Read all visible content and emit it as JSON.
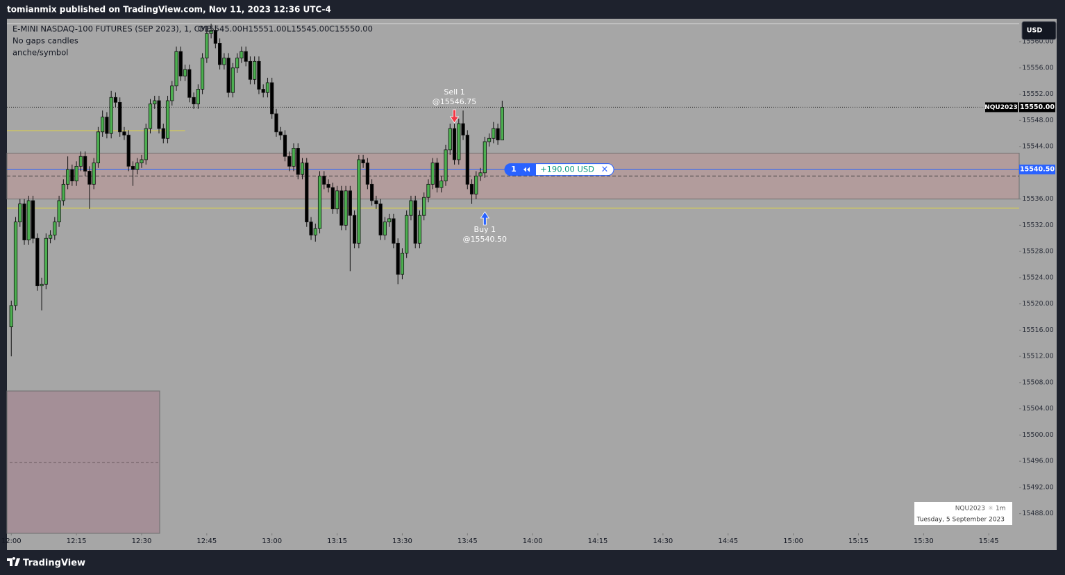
{
  "header": {
    "publisher": "tomianmix published on TradingView.com, Nov 11, 2023 12:36 UTC-4"
  },
  "chart_data": {
    "type": "candlestick",
    "title": "E-MINI NASDAQ-100 FUTURES (SEP 2023), 1, CME",
    "ohlc_legend": [
      "O15545.00",
      "H15551.00",
      "L15545.00",
      "C15550.00"
    ],
    "subtitle_lines": [
      "No gaps candles",
      "anche/symbol"
    ],
    "x": [
      "12:00",
      "12:01",
      "12:02",
      "12:03",
      "12:04",
      "12:05",
      "12:06",
      "12:07",
      "12:08",
      "12:09",
      "12:10",
      "12:11",
      "12:12",
      "12:13",
      "12:14",
      "12:15",
      "12:16",
      "12:17",
      "12:18",
      "12:19",
      "12:20",
      "12:21",
      "12:22",
      "12:23",
      "12:24",
      "12:25",
      "12:26",
      "12:27",
      "12:28",
      "12:29",
      "12:30",
      "12:31",
      "12:32",
      "12:33",
      "12:34",
      "12:35",
      "12:36",
      "12:37",
      "12:38",
      "12:39",
      "12:40",
      "12:41",
      "12:42",
      "12:43",
      "12:44",
      "12:45",
      "12:46",
      "12:47",
      "12:48",
      "12:49",
      "12:50",
      "12:51",
      "12:52",
      "12:53",
      "12:54",
      "12:55",
      "12:56",
      "12:57",
      "12:58",
      "12:59",
      "13:00",
      "13:01",
      "13:02",
      "13:03",
      "13:04",
      "13:05",
      "13:06",
      "13:07",
      "13:08",
      "13:09",
      "13:10",
      "13:11",
      "13:12",
      "13:13",
      "13:14",
      "13:15",
      "13:16",
      "13:17",
      "13:18",
      "13:19",
      "13:20",
      "13:21",
      "13:22",
      "13:23",
      "13:24",
      "13:25",
      "13:26",
      "13:27",
      "13:28",
      "13:29",
      "13:30",
      "13:31",
      "13:32",
      "13:33",
      "13:34",
      "13:35",
      "13:36",
      "13:37",
      "13:38",
      "13:39",
      "13:40",
      "13:41",
      "13:42",
      "13:43",
      "13:44",
      "13:45",
      "13:46",
      "13:47",
      "13:48",
      "13:49",
      "13:50",
      "13:51",
      "13:52",
      "13:53"
    ],
    "open": [
      15516.5,
      15519.75,
      15532.5,
      15535.25,
      15529.75,
      15535.75,
      15530,
      15522.75,
      15523,
      15530,
      15530.5,
      15532.5,
      15535.75,
      15538.25,
      15540.5,
      15538.75,
      15541,
      15542.5,
      15540.25,
      15538.25,
      15541.5,
      15546.25,
      15548.5,
      15546,
      15551.5,
      15550.75,
      15546.25,
      15545.75,
      15541,
      15540.5,
      15541.5,
      15542,
      15546.75,
      15550.5,
      15551,
      15546.75,
      15545.25,
      15551,
      15553.25,
      15558.5,
      15554.75,
      15555.75,
      15551.5,
      15550.5,
      15552.75,
      15557.5,
      15561.25,
      15561.75,
      15559.75,
      15556.5,
      15557.5,
      15552.25,
      15556,
      15557.5,
      15558.5,
      15557,
      15554.25,
      15557,
      15552.75,
      15552.25,
      15553.75,
      15549,
      15546.25,
      15545.75,
      15542.5,
      15541,
      15543.75,
      15539.75,
      15541.5,
      15532.5,
      15530.5,
      15531.5,
      15539.5,
      15538.25,
      15537.75,
      15534.5,
      15537.25,
      15532,
      15537.25,
      15533.5,
      15529.25,
      15542,
      15541.5,
      15538.25,
      15535.75,
      15535.25,
      15530.5,
      15532.5,
      15533,
      15529.25,
      15524.5,
      15527.75,
      15533.5,
      15535.75,
      15529.25,
      15533.5,
      15536.25,
      15538.25,
      15541.5,
      15537.75,
      15538.75,
      15543.5,
      15546.75,
      15542,
      15547.5,
      15545.75,
      15538.25,
      15536.75,
      15539.5,
      15540,
      15544.75,
      15545.25,
      15546.75,
      15545
    ],
    "high": [
      15520.5,
      15533.25,
      15536,
      15536,
      15536.5,
      15536.5,
      15530.75,
      15524,
      15530.75,
      15531.25,
      15533.25,
      15536.5,
      15539,
      15542.5,
      15541.25,
      15541.75,
      15543.25,
      15543.25,
      15541,
      15542.25,
      15547,
      15549.5,
      15549.25,
      15552.5,
      15552.25,
      15551.5,
      15547,
      15546.5,
      15541.75,
      15542.25,
      15542.75,
      15547.5,
      15551.25,
      15551.75,
      15551.75,
      15547.5,
      15551.75,
      15554,
      15559.25,
      15559.25,
      15556.5,
      15556.5,
      15552.25,
      15553.5,
      15558.25,
      15562,
      15562.75,
      15562.5,
      15560.5,
      15558.25,
      15558.25,
      15556.75,
      15558.25,
      15559.25,
      15559.25,
      15557.75,
      15557.75,
      15557.75,
      15553.5,
      15554.5,
      15554.5,
      15549.75,
      15547,
      15546.5,
      15543.25,
      15544.5,
      15544.5,
      15542.25,
      15542.25,
      15533.25,
      15532.25,
      15540.25,
      15540.25,
      15539,
      15538.5,
      15538,
      15538,
      15538,
      15538,
      15534.25,
      15542.75,
      15542.75,
      15542.25,
      15539,
      15536.5,
      15536,
      15533.25,
      15533.75,
      15533.75,
      15530,
      15528.5,
      15534.25,
      15536.5,
      15536.5,
      15534.25,
      15537,
      15539,
      15542.25,
      15542.25,
      15539.5,
      15544.25,
      15547.5,
      15547.5,
      15548.25,
      15549.5,
      15546.5,
      15539,
      15540.25,
      15540.75,
      15545.5,
      15546,
      15547.75,
      15547.5,
      15551
    ],
    "low": [
      15512,
      15519,
      15531.75,
      15529,
      15529,
      15529.25,
      15522,
      15519,
      15522.25,
      15529.25,
      15529.75,
      15531.75,
      15535,
      15537.5,
      15538,
      15538,
      15540.25,
      15539.5,
      15534.5,
      15537.5,
      15540.75,
      15545.5,
      15545.25,
      15545.25,
      15550,
      15545.5,
      15545,
      15540.25,
      15538,
      15539.75,
      15540.75,
      15541.25,
      15546,
      15549.75,
      15546,
      15544.5,
      15544.5,
      15550.25,
      15552.5,
      15554,
      15554,
      15550.75,
      15549.75,
      15549.75,
      15552,
      15556.75,
      15560.5,
      15559,
      15555.75,
      15555.75,
      15551.5,
      15551.5,
      15555.25,
      15556.75,
      15556.25,
      15553.5,
      15553.5,
      15552,
      15551.5,
      15551.5,
      15548.25,
      15545.5,
      15545,
      15541.75,
      15540.25,
      15540.25,
      15539,
      15539,
      15531.75,
      15529.75,
      15529.5,
      15530.75,
      15537.5,
      15537,
      15533.75,
      15533.75,
      15531.25,
      15531.25,
      15525,
      15528.5,
      15528.5,
      15540.75,
      15537.5,
      15535,
      15534.5,
      15529.75,
      15529.75,
      15531.75,
      15528.5,
      15523,
      15523.75,
      15527,
      15532.75,
      15528.5,
      15528.5,
      15532.75,
      15535.5,
      15537.5,
      15537,
      15537,
      15538,
      15542.75,
      15541.25,
      15541.25,
      15545,
      15537.5,
      15535.25,
      15536,
      15538.75,
      15539.25,
      15544,
      15544.5,
      15544.25,
      15545
    ],
    "close": [
      15519.75,
      15532.5,
      15535.25,
      15529.75,
      15535.75,
      15530,
      15522.75,
      15523,
      15530,
      15530.5,
      15532.5,
      15535.75,
      15538.25,
      15540.5,
      15538.75,
      15541,
      15542.5,
      15540.25,
      15538.25,
      15541.5,
      15546.25,
      15548.5,
      15546,
      15551.5,
      15550.75,
      15546.25,
      15545.75,
      15541,
      15540.5,
      15541.5,
      15542,
      15546.75,
      15550.5,
      15551,
      15546.75,
      15545.25,
      15551,
      15553.25,
      15558.5,
      15554.75,
      15555.75,
      15551.5,
      15550.5,
      15552.75,
      15557.5,
      15561.25,
      15561.75,
      15559.75,
      15556.5,
      15557.5,
      15552.25,
      15556,
      15557.5,
      15558.5,
      15557,
      15554.25,
      15557,
      15552.75,
      15552.25,
      15553.75,
      15549,
      15546.25,
      15545.75,
      15542.5,
      15541,
      15543.75,
      15539.75,
      15541.5,
      15532.5,
      15530.5,
      15531.5,
      15539.5,
      15538.25,
      15537.75,
      15534.5,
      15537.25,
      15532,
      15537.25,
      15533.5,
      15529.25,
      15542,
      15541.5,
      15538.25,
      15535.75,
      15535.25,
      15530.5,
      15532.5,
      15533,
      15529.25,
      15524.5,
      15527.75,
      15533.5,
      15535.75,
      15529.25,
      15533.5,
      15536.25,
      15538.25,
      15541.5,
      15537.75,
      15538.75,
      15543.5,
      15546.75,
      15542,
      15547.5,
      15545.75,
      15538.25,
      15536.75,
      15539.5,
      15540,
      15544.75,
      15545.25,
      15546.75,
      15545,
      15550
    ],
    "up_color": "#4caf50",
    "down_color": "#000000",
    "xlim": [
      "11:59",
      "15:52"
    ],
    "xticks": [
      "12:00",
      "12:15",
      "12:30",
      "12:45",
      "13:00",
      "13:15",
      "13:30",
      "13:45",
      "14:00",
      "14:15",
      "14:30",
      "14:45",
      "15:00",
      "15:15",
      "15:30",
      "15:45"
    ],
    "ylim": [
      15485,
      15563.5
    ],
    "yticks": [
      {
        "value": 15560,
        "label": "15560.00"
      },
      {
        "value": 15556,
        "label": "15556.00"
      },
      {
        "value": 15552,
        "label": "15552.00"
      },
      {
        "value": 15548,
        "label": "15548.00"
      },
      {
        "value": 15544,
        "label": "15544.00"
      },
      {
        "value": 15536,
        "label": "15536.00"
      },
      {
        "value": 15532,
        "label": "15532.00"
      },
      {
        "value": 15528,
        "label": "15528.00"
      },
      {
        "value": 15524,
        "label": "15524.00"
      },
      {
        "value": 15520,
        "label": "15520.00"
      },
      {
        "value": 15516,
        "label": "15516.00"
      },
      {
        "value": 15512,
        "label": "15512.00"
      },
      {
        "value": 15508,
        "label": "15508.00"
      },
      {
        "value": 15504,
        "label": "15504.00"
      },
      {
        "value": 15500,
        "label": "15500.00"
      },
      {
        "value": 15496,
        "label": "15496.00"
      },
      {
        "value": 15492,
        "label": "15492.00"
      },
      {
        "value": 15488,
        "label": "15488.00"
      }
    ],
    "last_price": {
      "value": 15550,
      "label": "15550.00",
      "symbol": "NQU2023"
    },
    "position": {
      "value": 15540.5,
      "label": "15540.50",
      "quantity": "1",
      "pnl": "+190.00 USD",
      "close": "×"
    },
    "zone": {
      "top": 15543,
      "bottom": 15536,
      "mid": 15539.5,
      "color": "#b29c9c"
    },
    "yellow_lines": [
      {
        "value": 15546.4,
        "end": "12:40"
      },
      {
        "value": 15534.6
      }
    ],
    "executions": [
      {
        "side": "Sell 1",
        "price": "@15546.75",
        "time": "13:42"
      },
      {
        "side": "Buy 1",
        "price": "@15540.50",
        "time": "13:49"
      }
    ],
    "currency": "USD",
    "info": {
      "symbol": "NQU2023",
      "interval": "1m",
      "date": "Tuesday, 5 September 2023"
    }
  },
  "footer": {
    "brand": "TradingView"
  }
}
